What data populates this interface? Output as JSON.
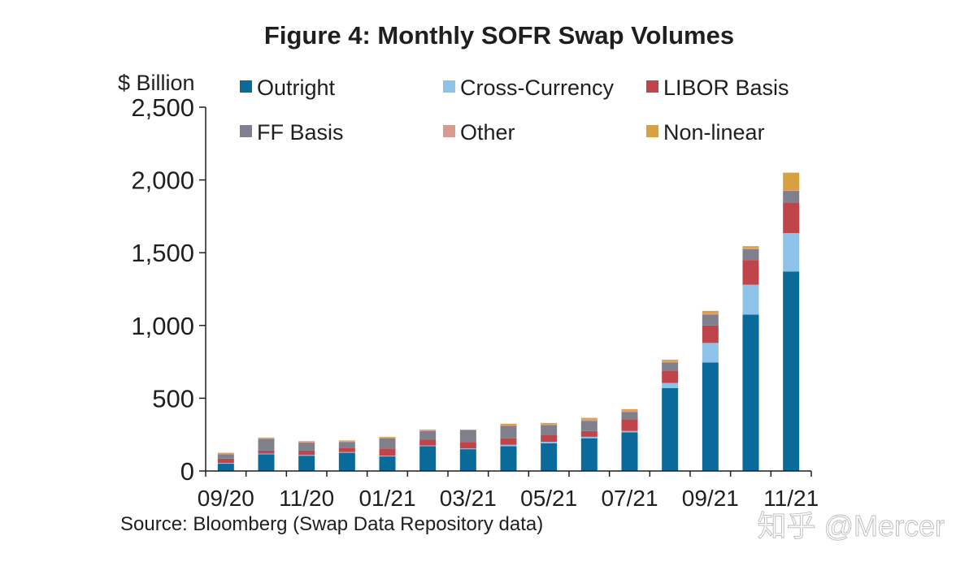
{
  "chart_data": {
    "type": "bar",
    "stacked": true,
    "title": "Figure 4: Monthly SOFR Swap Volumes",
    "ylabel": "$ Billion",
    "xlabel": "",
    "ylim": [
      0,
      2500
    ],
    "yticks": [
      0,
      500,
      1000,
      1500,
      2000,
      2500
    ],
    "ytick_labels": [
      "0",
      "500",
      "1,000",
      "1,500",
      "2,000",
      "2,500"
    ],
    "legend_position": "top (inside plot area, two rows)",
    "grid": false,
    "categories": [
      "09/20",
      "10/20",
      "11/20",
      "12/20",
      "01/21",
      "02/21",
      "03/21",
      "04/21",
      "05/21",
      "06/21",
      "07/21",
      "08/21",
      "09/21",
      "10/21",
      "11/21"
    ],
    "xtick_labels": [
      "09/20",
      "",
      "11/20",
      "",
      "01/21",
      "",
      "03/21",
      "",
      "05/21",
      "",
      "07/21",
      "",
      "09/21",
      "",
      "11/21"
    ],
    "series": [
      {
        "name": "Outright",
        "color": "#0a6a9a",
        "values": [
          50,
          115,
          105,
          125,
          100,
          170,
          150,
          170,
          190,
          225,
          265,
          570,
          745,
          1075,
          1370
        ]
      },
      {
        "name": "Cross-Currency",
        "color": "#8dc3e8",
        "values": [
          5,
          5,
          5,
          5,
          5,
          5,
          5,
          10,
          10,
          10,
          10,
          35,
          135,
          205,
          265
        ]
      },
      {
        "name": "LIBOR Basis",
        "color": "#c0454a",
        "values": [
          30,
          20,
          30,
          30,
          50,
          40,
          45,
          45,
          50,
          40,
          80,
          85,
          120,
          170,
          210
        ]
      },
      {
        "name": "FF Basis",
        "color": "#80808c",
        "values": [
          30,
          80,
          55,
          40,
          70,
          60,
          80,
          85,
          65,
          70,
          50,
          55,
          75,
          75,
          80
        ]
      },
      {
        "name": "Other",
        "color": "#d99b90",
        "values": [
          5,
          5,
          5,
          5,
          5,
          5,
          0,
          5,
          5,
          10,
          10,
          10,
          10,
          10,
          5
        ]
      },
      {
        "name": "Non-linear",
        "color": "#d8a040",
        "values": [
          5,
          5,
          5,
          5,
          5,
          5,
          5,
          10,
          10,
          10,
          10,
          10,
          15,
          10,
          120
        ]
      }
    ],
    "source": "Source: Bloomberg (Swap Data Repository data)"
  },
  "watermark": "知乎 @Mercer"
}
